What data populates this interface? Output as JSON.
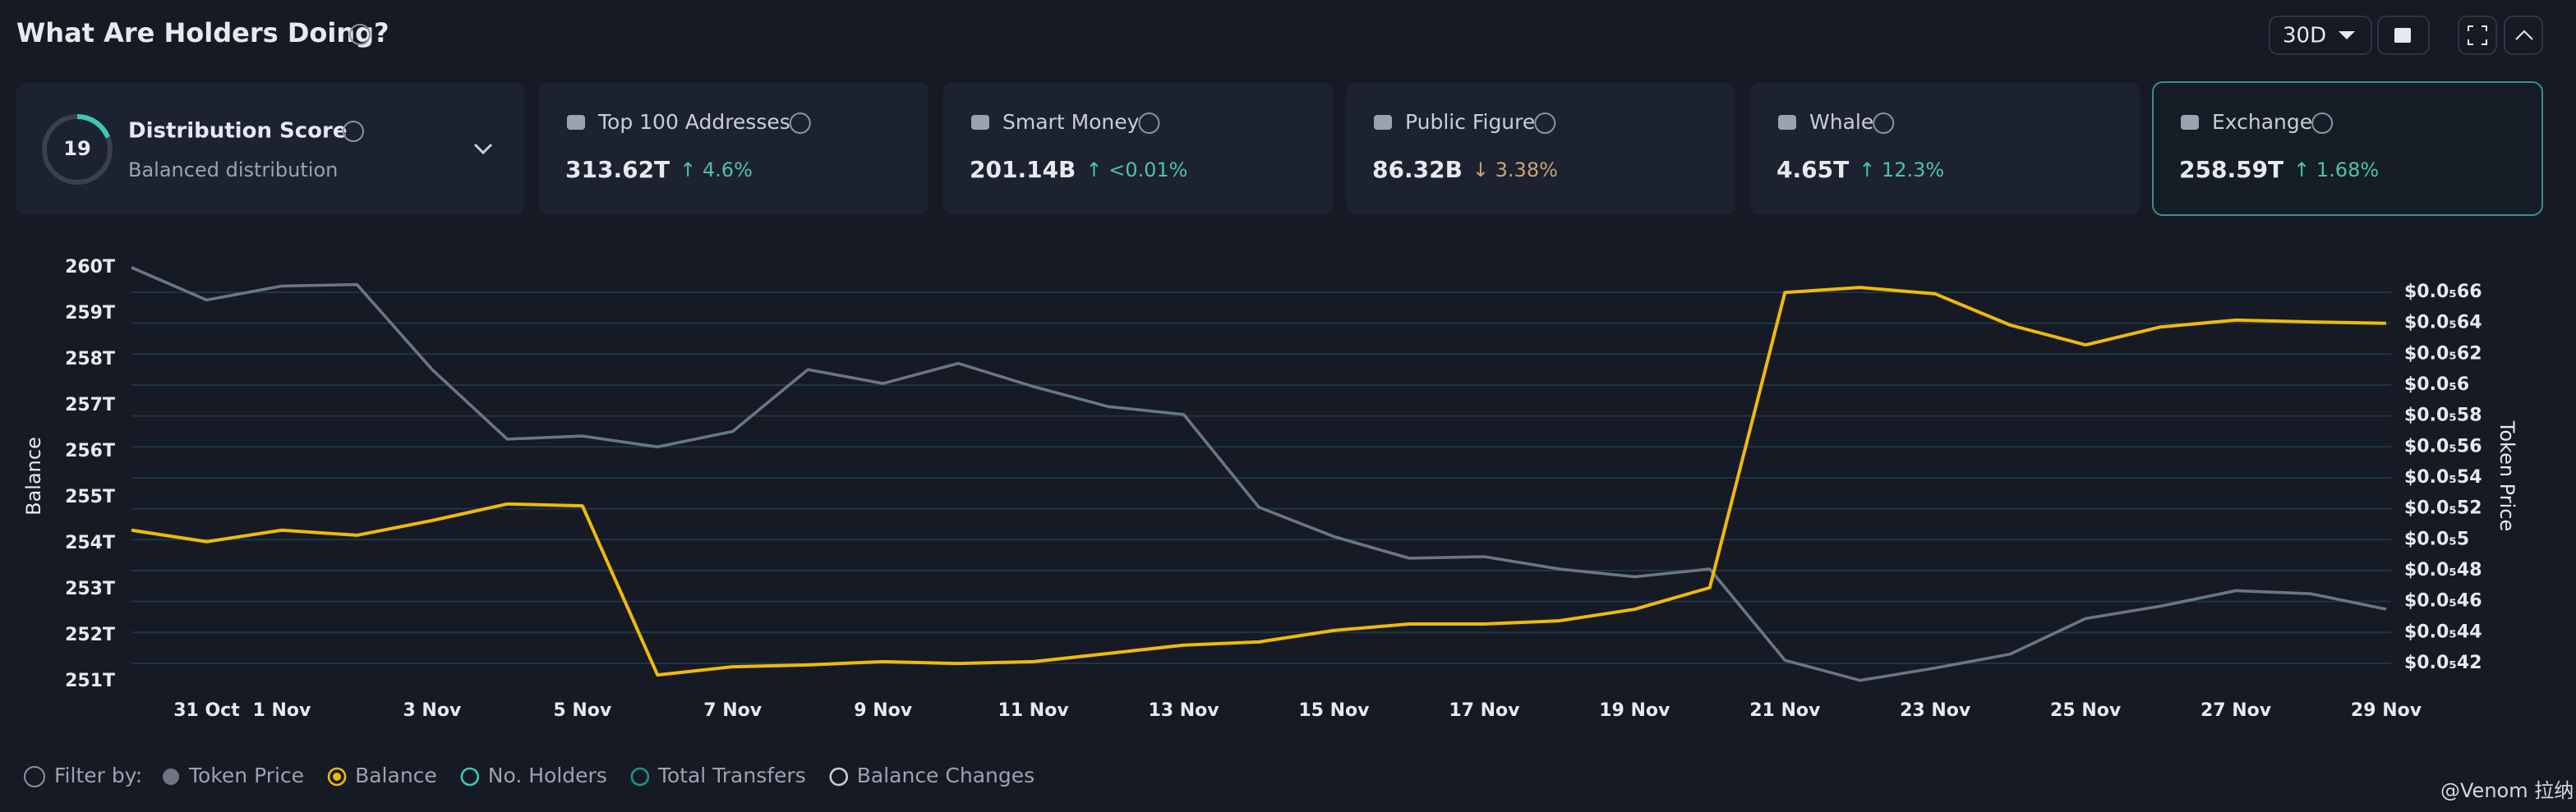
{
  "header": {
    "title": "What Are Holders Doing?",
    "period": "30D"
  },
  "distribution": {
    "title": "Distribution Score",
    "score": 19,
    "subtitle": "Balanced distribution"
  },
  "cards": [
    {
      "title": "Top 100 Addresses",
      "value": "313.62T",
      "change": "↑ 4.6%",
      "trend": "up"
    },
    {
      "title": "Smart Money",
      "value": "201.14B",
      "change": "↑ <0.01%",
      "trend": "up"
    },
    {
      "title": "Public Figure",
      "value": "86.32B",
      "change": "↓ 3.38%",
      "trend": "down"
    },
    {
      "title": "Whale",
      "value": "4.65T",
      "change": "↑ 12.3%",
      "trend": "up"
    },
    {
      "title": "Exchange",
      "value": "258.59T",
      "change": "↑ 1.68%",
      "trend": "up"
    }
  ],
  "chart_data": {
    "type": "line",
    "y_label": "Balance",
    "y2_label": "Token Price",
    "grid": true,
    "categories": [
      null,
      "31 Oct",
      "1 Nov",
      null,
      "3 Nov",
      null,
      "5 Nov",
      null,
      "7 Nov",
      null,
      "9 Nov",
      null,
      "11 Nov",
      null,
      "13 Nov",
      null,
      "15 Nov",
      null,
      "17 Nov",
      null,
      "19 Nov",
      null,
      "21 Nov",
      null,
      "23 Nov",
      null,
      "25 Nov",
      null,
      "27 Nov",
      null,
      "29 Nov"
    ],
    "ylim": [
      251,
      260
    ],
    "yticks": [
      {
        "value": 251,
        "label": "251T"
      },
      {
        "value": 252,
        "label": "252T"
      },
      {
        "value": 253,
        "label": "253T"
      },
      {
        "value": 254,
        "label": "254T"
      },
      {
        "value": 255,
        "label": "255T"
      },
      {
        "value": 256,
        "label": "256T"
      },
      {
        "value": 257,
        "label": "257T"
      },
      {
        "value": 258,
        "label": "258T"
      },
      {
        "value": 259,
        "label": "259T"
      },
      {
        "value": 260,
        "label": "260T"
      }
    ],
    "y2lim": [
      4.083e-06,
      6.759e-06
    ],
    "y2ticks": [
      {
        "value": 4.2e-06,
        "label": "$0.0₅42"
      },
      {
        "value": 4.4e-06,
        "label": "$0.0₅44"
      },
      {
        "value": 4.6e-06,
        "label": "$0.0₅46"
      },
      {
        "value": 4.8e-06,
        "label": "$0.0₅48"
      },
      {
        "value": 5e-06,
        "label": "$0.0₅5"
      },
      {
        "value": 5.2e-06,
        "label": "$0.0₅52"
      },
      {
        "value": 5.4e-06,
        "label": "$0.0₅54"
      },
      {
        "value": 5.6e-06,
        "label": "$0.0₅56"
      },
      {
        "value": 5.8e-06,
        "label": "$0.0₅58"
      },
      {
        "value": 6e-06,
        "label": "$0.0₅6"
      },
      {
        "value": 6.2e-06,
        "label": "$0.0₅62"
      },
      {
        "value": 6.4e-06,
        "label": "$0.0₅64"
      },
      {
        "value": 6.6e-06,
        "label": "$0.0₅66"
      }
    ],
    "series": [
      {
        "name": "Token Price",
        "color": "#6b7683",
        "axis": "y2",
        "values": [
          6.76e-06,
          6.55e-06,
          6.64e-06,
          6.65e-06,
          6.1e-06,
          5.65e-06,
          5.67e-06,
          5.6e-06,
          5.7e-06,
          6.1e-06,
          6.01e-06,
          6.14e-06,
          5.99e-06,
          5.86e-06,
          5.81e-06,
          5.21e-06,
          5.02e-06,
          4.88e-06,
          4.89e-06,
          4.81e-06,
          4.76e-06,
          4.81e-06,
          4.22e-06,
          4.09e-06,
          4.17e-06,
          4.26e-06,
          4.49e-06,
          4.57e-06,
          4.67e-06,
          4.65e-06,
          4.55e-06
        ]
      },
      {
        "name": "Balance",
        "color": "#f0b90b",
        "values": [
          254.29,
          254.04,
          254.29,
          254.18,
          254.5,
          254.86,
          254.82,
          251.14,
          251.32,
          251.36,
          251.43,
          251.39,
          251.43,
          251.61,
          251.79,
          251.86,
          252.11,
          252.25,
          252.25,
          252.32,
          252.57,
          253.04,
          259.46,
          259.57,
          259.43,
          258.75,
          258.32,
          258.71,
          258.86,
          258.82,
          258.79
        ]
      }
    ]
  },
  "filter": {
    "label": "Filter by:",
    "options": [
      {
        "name": "No. Holders",
        "color": "#3ec7b3"
      },
      {
        "name": "Total Transfers",
        "color": "#2a8f84"
      },
      {
        "name": "Balance Changes",
        "color": "#c9ced6"
      }
    ]
  },
  "watermark": "@Venom 拉纳"
}
